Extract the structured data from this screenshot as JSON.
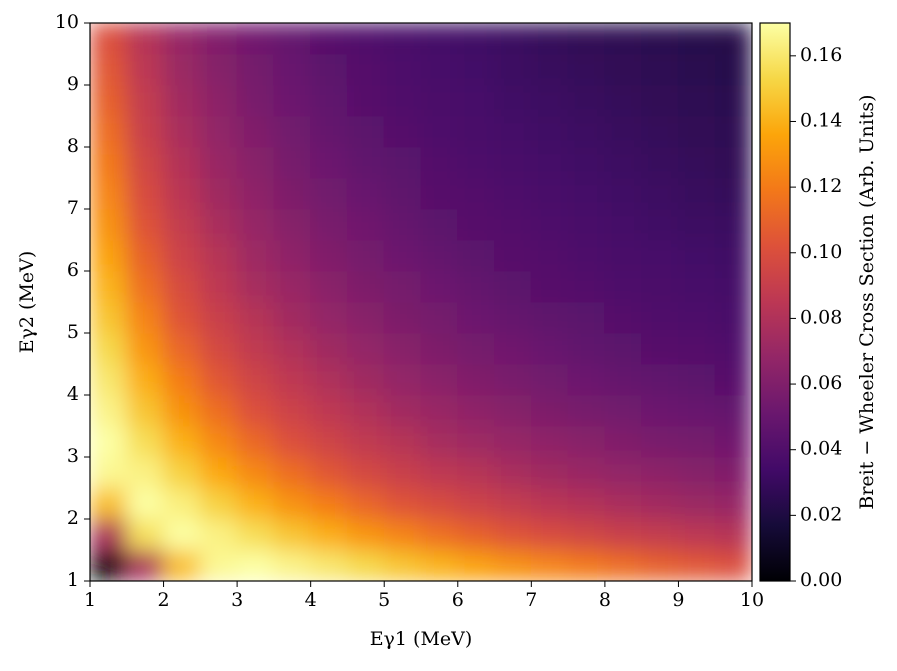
{
  "chart_data": {
    "type": "heatmap",
    "xlabel": "Eγ1 (MeV)",
    "ylabel": "Eγ2 (MeV)",
    "colorbar_label": "Breit − Wheeler Cross Section (Arb. Units)",
    "colormap": "inferno",
    "x": [
      1.25,
      1.75,
      2.25,
      2.75,
      3.25,
      3.75,
      4.25,
      4.75,
      5.25,
      5.75,
      6.25,
      6.75,
      7.25,
      7.75,
      8.25,
      8.75,
      9.25,
      9.75
    ],
    "y": [
      1.25,
      1.75,
      2.25,
      2.75,
      3.25,
      3.75,
      4.25,
      4.75,
      5.25,
      5.75,
      6.25,
      6.75,
      7.25,
      7.75,
      8.25,
      8.75,
      9.25,
      9.75
    ],
    "z": [
      [
        0,
        0.078,
        0.144,
        0.167,
        0.17,
        0.165,
        0.16,
        0.154,
        0.147,
        0.141,
        0.135,
        0.129,
        0.124,
        0.119,
        0.114,
        0.109,
        0.105,
        0.101
      ],
      [
        0.078,
        0.157,
        0.17,
        0.164,
        0.156,
        0.147,
        0.139,
        0.13,
        0.123,
        0.115,
        0.109,
        0.103,
        0.099,
        0.095,
        0.091,
        0.088,
        0.085,
        0.082
      ],
      [
        0.144,
        0.17,
        0.163,
        0.151,
        0.14,
        0.129,
        0.12,
        0.111,
        0.103,
        0.098,
        0.093,
        0.088,
        0.084,
        0.081,
        0.077,
        0.074,
        0.071,
        0.069
      ],
      [
        0.167,
        0.164,
        0.151,
        0.137,
        0.125,
        0.114,
        0.104,
        0.097,
        0.091,
        0.086,
        0.082,
        0.077,
        0.073,
        0.07,
        0.067,
        0.065,
        0.062,
        0.06
      ],
      [
        0.17,
        0.156,
        0.14,
        0.125,
        0.112,
        0.101,
        0.094,
        0.087,
        0.082,
        0.076,
        0.072,
        0.069,
        0.066,
        0.063,
        0.06,
        0.057,
        0.055,
        0.053
      ],
      [
        0.165,
        0.147,
        0.129,
        0.114,
        0.101,
        0.093,
        0.086,
        0.08,
        0.074,
        0.07,
        0.066,
        0.062,
        0.059,
        0.056,
        0.054,
        0.052,
        0.05,
        0.048
      ],
      [
        0.16,
        0.139,
        0.12,
        0.104,
        0.094,
        0.086,
        0.079,
        0.073,
        0.068,
        0.064,
        0.06,
        0.057,
        0.054,
        0.052,
        0.049,
        0.047,
        0.045,
        0.043
      ],
      [
        0.154,
        0.13,
        0.111,
        0.097,
        0.087,
        0.08,
        0.073,
        0.068,
        0.063,
        0.059,
        0.055,
        0.053,
        0.05,
        0.047,
        0.045,
        0.043,
        0.042,
        0.04
      ],
      [
        0.147,
        0.123,
        0.103,
        0.091,
        0.082,
        0.074,
        0.068,
        0.063,
        0.058,
        0.055,
        0.052,
        0.049,
        0.046,
        0.044,
        0.042,
        0.04,
        0.039,
        0.037
      ],
      [
        0.141,
        0.115,
        0.098,
        0.086,
        0.076,
        0.07,
        0.064,
        0.059,
        0.055,
        0.052,
        0.048,
        0.045,
        0.043,
        0.041,
        0.039,
        0.038,
        0.036,
        0.035
      ],
      [
        0.135,
        0.109,
        0.093,
        0.082,
        0.072,
        0.066,
        0.06,
        0.055,
        0.052,
        0.048,
        0.045,
        0.043,
        0.041,
        0.039,
        0.037,
        0.036,
        0.034,
        0.033
      ],
      [
        0.129,
        0.103,
        0.088,
        0.077,
        0.069,
        0.062,
        0.057,
        0.053,
        0.049,
        0.045,
        0.043,
        0.041,
        0.039,
        0.037,
        0.035,
        0.033,
        0.032,
        0.031
      ],
      [
        0.124,
        0.099,
        0.084,
        0.073,
        0.066,
        0.059,
        0.054,
        0.05,
        0.046,
        0.043,
        0.041,
        0.039,
        0.037,
        0.035,
        0.033,
        0.032,
        0.03,
        0.029
      ],
      [
        0.119,
        0.095,
        0.081,
        0.07,
        0.063,
        0.056,
        0.052,
        0.047,
        0.044,
        0.041,
        0.039,
        0.037,
        0.035,
        0.033,
        0.032,
        0.03,
        0.029,
        0.027
      ],
      [
        0.114,
        0.091,
        0.077,
        0.067,
        0.06,
        0.054,
        0.049,
        0.045,
        0.042,
        0.039,
        0.037,
        0.035,
        0.033,
        0.032,
        0.03,
        0.029,
        0.027,
        0.026
      ],
      [
        0.109,
        0.088,
        0.074,
        0.065,
        0.057,
        0.052,
        0.047,
        0.043,
        0.04,
        0.038,
        0.036,
        0.033,
        0.032,
        0.03,
        0.029,
        0.027,
        0.026,
        0.025
      ],
      [
        0.105,
        0.085,
        0.071,
        0.062,
        0.055,
        0.05,
        0.045,
        0.042,
        0.039,
        0.036,
        0.034,
        0.032,
        0.03,
        0.029,
        0.027,
        0.026,
        0.025,
        0.024
      ],
      [
        0.101,
        0.082,
        0.069,
        0.06,
        0.053,
        0.048,
        0.043,
        0.04,
        0.037,
        0.035,
        0.033,
        0.031,
        0.029,
        0.027,
        0.026,
        0.025,
        0.024,
        0.023
      ]
    ],
    "xlim": [
      1,
      10
    ],
    "ylim": [
      1,
      10
    ],
    "xticks": [
      1,
      2,
      3,
      4,
      5,
      6,
      7,
      8,
      9,
      10
    ],
    "yticks": [
      1,
      2,
      3,
      4,
      5,
      6,
      7,
      8,
      9,
      10
    ],
    "clim": [
      0,
      0.17
    ],
    "cticks": [
      {
        "value": 0,
        "label": "0.00"
      },
      0.02,
      0.04,
      0.06,
      0.08,
      {
        "value": 0.1,
        "label": "0.10"
      },
      0.12,
      0.14,
      0.16
    ]
  }
}
